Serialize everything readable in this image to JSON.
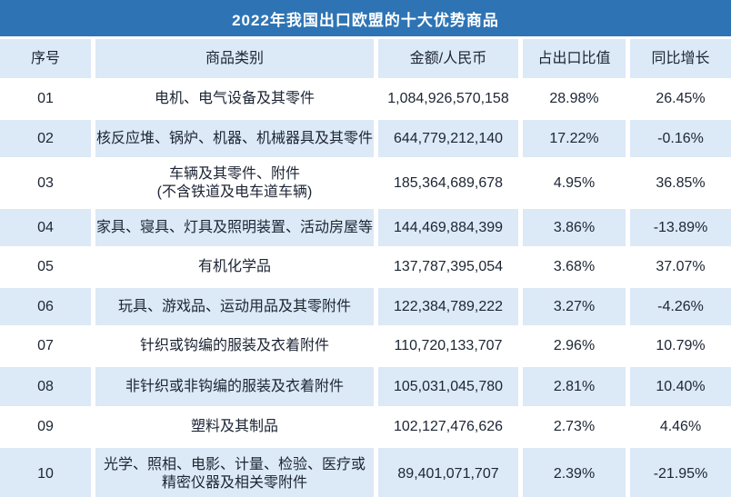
{
  "title": "2022年我国出口欧盟的十大优势商品",
  "colors": {
    "title_bar_bg": "#2e74b5",
    "title_text": "#ffffff",
    "stripe_bg": "#dce9f6",
    "body_text": "#1c2534"
  },
  "chart_data": {
    "type": "table",
    "title": "2022年我国出口欧盟的十大优势商品",
    "columns": [
      "序号",
      "商品类别",
      "金额/人民币",
      "占出口比值",
      "同比增长"
    ],
    "rows": [
      {
        "no": "01",
        "category": "电机、电气设备及其零件",
        "category2": "",
        "amount": "1,084,926,570,158",
        "share": "28.98%",
        "yoy": "26.45%"
      },
      {
        "no": "02",
        "category": "核反应堆、锅炉、机器、机械器具及其零件",
        "category2": "",
        "amount": "644,779,212,140",
        "share": "17.22%",
        "yoy": "-0.16%"
      },
      {
        "no": "03",
        "category": "车辆及其零件、附件",
        "category2": "(不含铁道及电车道车辆)",
        "amount": "185,364,689,678",
        "share": "4.95%",
        "yoy": "36.85%"
      },
      {
        "no": "04",
        "category": "家具、寝具、灯具及照明装置、活动房屋等",
        "category2": "",
        "amount": "144,469,884,399",
        "share": "3.86%",
        "yoy": "-13.89%"
      },
      {
        "no": "05",
        "category": "有机化学品",
        "category2": "",
        "amount": "137,787,395,054",
        "share": "3.68%",
        "yoy": "37.07%"
      },
      {
        "no": "06",
        "category": "玩具、游戏品、运动用品及其零附件",
        "category2": "",
        "amount": "122,384,789,222",
        "share": "3.27%",
        "yoy": "-4.26%"
      },
      {
        "no": "07",
        "category": "针织或钩编的服装及衣着附件",
        "category2": "",
        "amount": "110,720,133,707",
        "share": "2.96%",
        "yoy": "10.79%"
      },
      {
        "no": "08",
        "category": "非针织或非钩编的服装及衣着附件",
        "category2": "",
        "amount": "105,031,045,780",
        "share": "2.81%",
        "yoy": "10.40%"
      },
      {
        "no": "09",
        "category": "塑料及其制品",
        "category2": "",
        "amount": "102,127,476,626",
        "share": "2.73%",
        "yoy": "4.46%"
      },
      {
        "no": "10",
        "category": "光学、照相、电影、计量、检验、医疗或",
        "category2": "精密仪器及相关零附件",
        "amount": "89,401,071,707",
        "share": "2.39%",
        "yoy": "-21.95%"
      }
    ]
  }
}
